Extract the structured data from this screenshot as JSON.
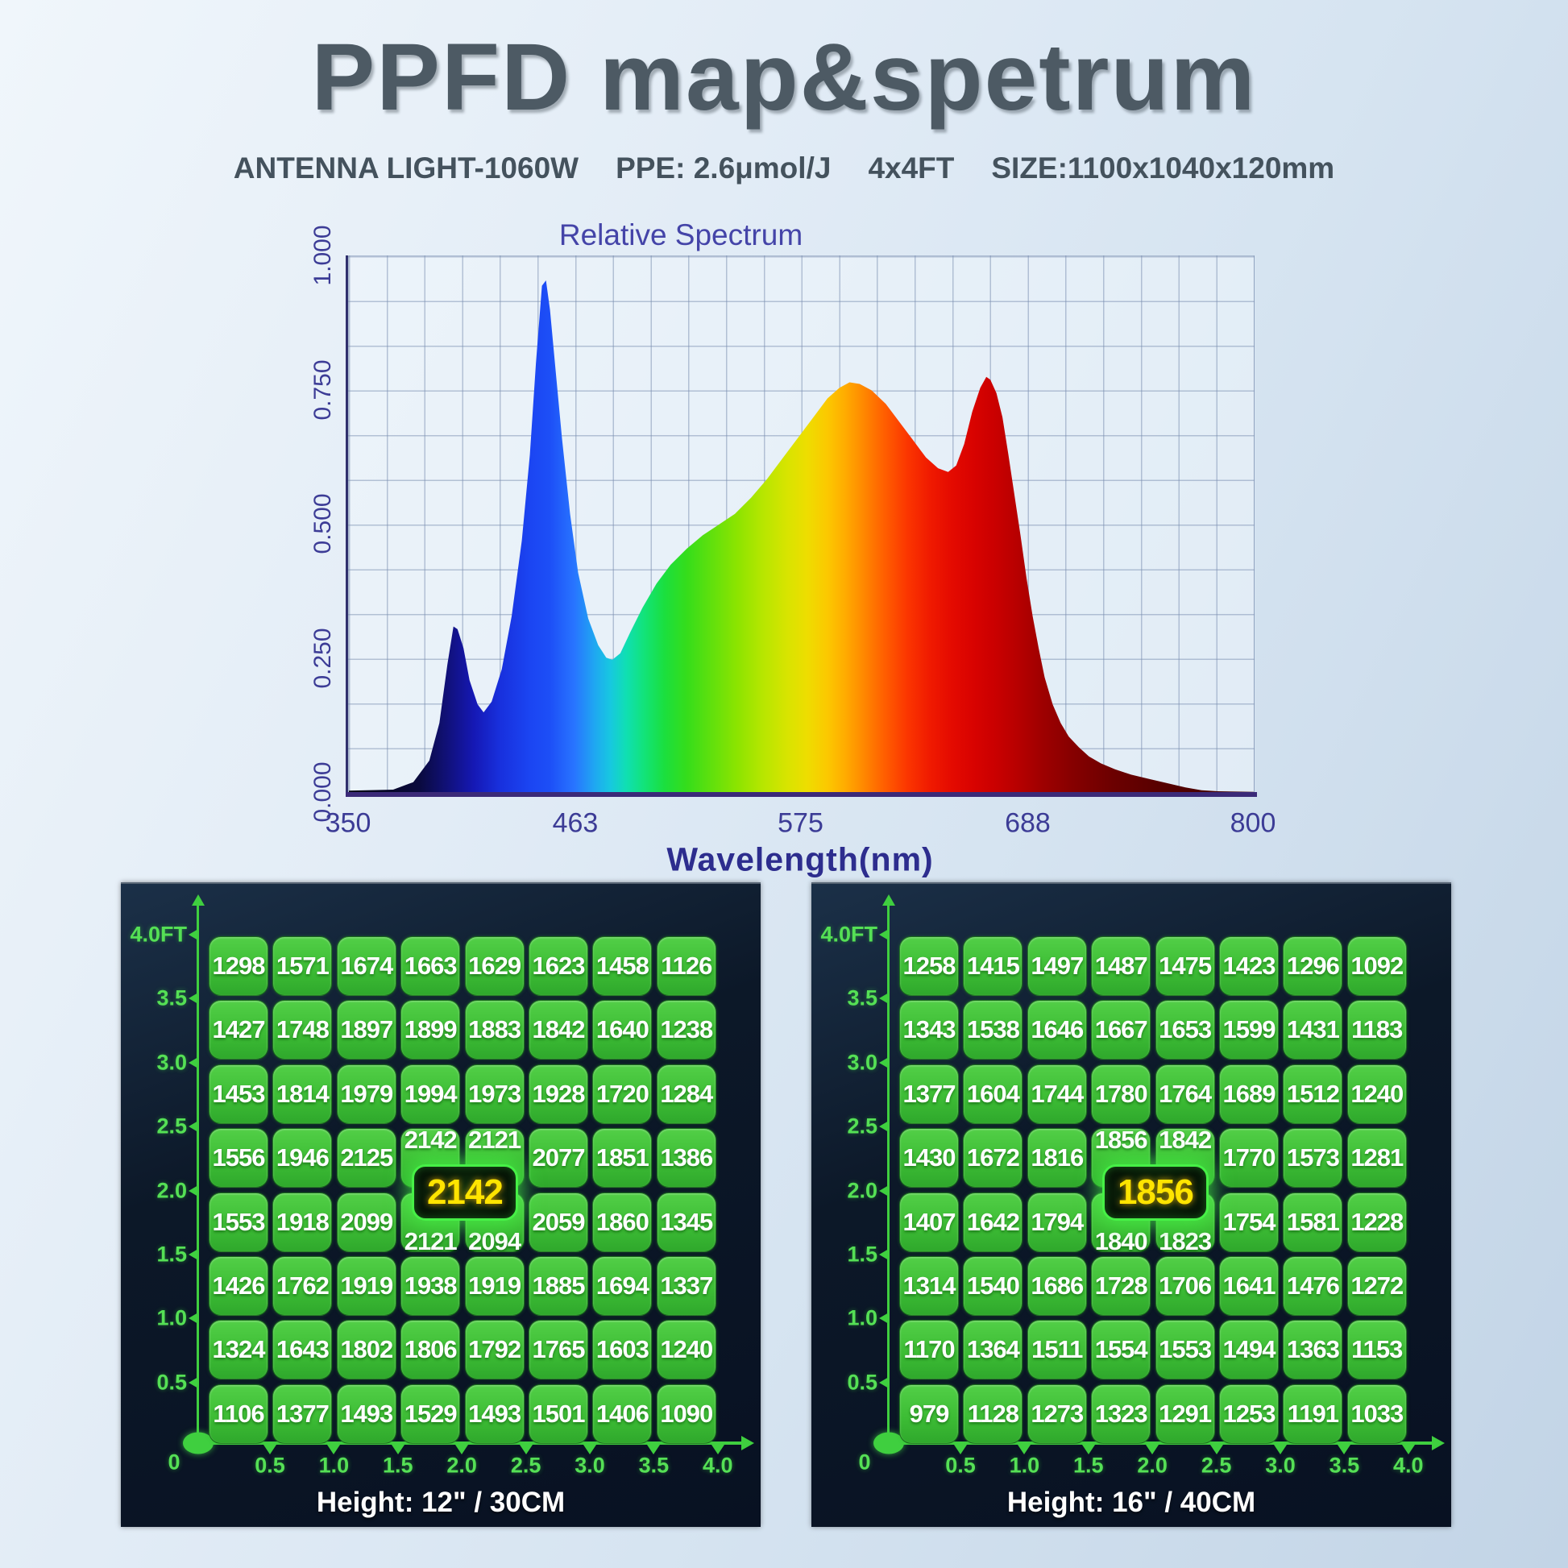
{
  "header": {
    "title": "PPFD map&spetrum",
    "subtitle_parts": [
      "ANTENNA LIGHT-1060W",
      "PPE: 2.6μmol/J",
      "4x4FT",
      "SIZE:1100x1040x120mm"
    ]
  },
  "chart_data": {
    "type": "area",
    "title": "Relative Spectrum",
    "xlabel": "Wavelength(nm)",
    "ylabel": "",
    "xlim": [
      350,
      800
    ],
    "ylim": [
      0,
      1
    ],
    "x_ticks": [
      "350",
      "463",
      "575",
      "688",
      "800"
    ],
    "x_tick_values": [
      350,
      463,
      575,
      688,
      800
    ],
    "y_ticks": [
      "1.000",
      "0.750",
      "0.500",
      "0.250",
      "0.000"
    ],
    "y_tick_values": [
      1.0,
      0.75,
      0.5,
      0.25,
      0.0
    ],
    "grid": "on",
    "points": [
      [
        350,
        0.004
      ],
      [
        372,
        0.006
      ],
      [
        382,
        0.02
      ],
      [
        390,
        0.06
      ],
      [
        395,
        0.13
      ],
      [
        399,
        0.24
      ],
      [
        402,
        0.31
      ],
      [
        404,
        0.305
      ],
      [
        407,
        0.27
      ],
      [
        410,
        0.21
      ],
      [
        414,
        0.165
      ],
      [
        417,
        0.15
      ],
      [
        421,
        0.17
      ],
      [
        426,
        0.23
      ],
      [
        431,
        0.33
      ],
      [
        436,
        0.47
      ],
      [
        440,
        0.63
      ],
      [
        443,
        0.8
      ],
      [
        446,
        0.945
      ],
      [
        448,
        0.955
      ],
      [
        450,
        0.9
      ],
      [
        453,
        0.78
      ],
      [
        456,
        0.66
      ],
      [
        460,
        0.52
      ],
      [
        464,
        0.41
      ],
      [
        469,
        0.325
      ],
      [
        474,
        0.275
      ],
      [
        478,
        0.252
      ],
      [
        481,
        0.248
      ],
      [
        485,
        0.26
      ],
      [
        490,
        0.3
      ],
      [
        496,
        0.345
      ],
      [
        503,
        0.39
      ],
      [
        510,
        0.425
      ],
      [
        518,
        0.455
      ],
      [
        526,
        0.48
      ],
      [
        534,
        0.5
      ],
      [
        542,
        0.52
      ],
      [
        550,
        0.55
      ],
      [
        558,
        0.585
      ],
      [
        566,
        0.625
      ],
      [
        574,
        0.665
      ],
      [
        582,
        0.705
      ],
      [
        588,
        0.735
      ],
      [
        594,
        0.755
      ],
      [
        599,
        0.765
      ],
      [
        604,
        0.762
      ],
      [
        610,
        0.75
      ],
      [
        617,
        0.725
      ],
      [
        624,
        0.69
      ],
      [
        631,
        0.655
      ],
      [
        637,
        0.625
      ],
      [
        643,
        0.605
      ],
      [
        648,
        0.598
      ],
      [
        652,
        0.61
      ],
      [
        656,
        0.65
      ],
      [
        660,
        0.71
      ],
      [
        664,
        0.755
      ],
      [
        667,
        0.775
      ],
      [
        669,
        0.77
      ],
      [
        672,
        0.745
      ],
      [
        675,
        0.7
      ],
      [
        678,
        0.63
      ],
      [
        681,
        0.555
      ],
      [
        684,
        0.48
      ],
      [
        687,
        0.4
      ],
      [
        690,
        0.33
      ],
      [
        693,
        0.27
      ],
      [
        696,
        0.215
      ],
      [
        700,
        0.165
      ],
      [
        704,
        0.13
      ],
      [
        708,
        0.105
      ],
      [
        713,
        0.085
      ],
      [
        718,
        0.068
      ],
      [
        724,
        0.055
      ],
      [
        731,
        0.044
      ],
      [
        739,
        0.034
      ],
      [
        748,
        0.026
      ],
      [
        757,
        0.018
      ],
      [
        766,
        0.01
      ],
      [
        774,
        0.005
      ],
      [
        782,
        0.003
      ],
      [
        800,
        0.002
      ]
    ],
    "gradient_stops": [
      [
        350,
        "#050510"
      ],
      [
        385,
        "#0a0a3e"
      ],
      [
        400,
        "#11117e"
      ],
      [
        412,
        "#1518b4"
      ],
      [
        425,
        "#1830dd"
      ],
      [
        440,
        "#1b45f2"
      ],
      [
        450,
        "#1d4ff7"
      ],
      [
        462,
        "#2874ff"
      ],
      [
        472,
        "#1fa6f2"
      ],
      [
        480,
        "#17c8e0"
      ],
      [
        488,
        "#10dfb2"
      ],
      [
        497,
        "#12e378"
      ],
      [
        507,
        "#1bdf3e"
      ],
      [
        518,
        "#35dd1b"
      ],
      [
        530,
        "#5fe00d"
      ],
      [
        543,
        "#8ce400"
      ],
      [
        556,
        "#b7e600"
      ],
      [
        568,
        "#d8e400"
      ],
      [
        578,
        "#eedd00"
      ],
      [
        588,
        "#fcc800"
      ],
      [
        597,
        "#ffab00"
      ],
      [
        607,
        "#ff8400"
      ],
      [
        617,
        "#ff5c00"
      ],
      [
        628,
        "#fb3500"
      ],
      [
        639,
        "#f01a00"
      ],
      [
        650,
        "#e40a00"
      ],
      [
        660,
        "#d90300"
      ],
      [
        670,
        "#cc0000"
      ],
      [
        682,
        "#b80000"
      ],
      [
        695,
        "#9e0000"
      ],
      [
        710,
        "#860000"
      ],
      [
        730,
        "#6c0000"
      ],
      [
        755,
        "#560000"
      ],
      [
        780,
        "#460000"
      ],
      [
        800,
        "#3c0000"
      ]
    ]
  },
  "ppfd_maps": [
    {
      "caption": "Height: 12\" / 30CM",
      "center_value": "2142",
      "y_axis_labels": [
        "4.0FT",
        "3.5",
        "3.0",
        "2.5",
        "2.0",
        "1.5",
        "1.0",
        "0.5"
      ],
      "origin_label": "0",
      "x_axis_labels": [
        "0.5",
        "1.0",
        "1.5",
        "2.0",
        "2.5",
        "3.0",
        "3.5",
        "4.0"
      ],
      "rows": [
        [
          1298,
          1571,
          1674,
          1663,
          1629,
          1623,
          1458,
          1126
        ],
        [
          1427,
          1748,
          1897,
          1899,
          1883,
          1842,
          1640,
          1238
        ],
        [
          1453,
          1814,
          1979,
          1994,
          1973,
          1928,
          1720,
          1284
        ],
        [
          1556,
          1946,
          2125,
          2142,
          2121,
          2077,
          1851,
          1386
        ],
        [
          1553,
          1918,
          2099,
          2121,
          2094,
          2059,
          1860,
          1345
        ],
        [
          1426,
          1762,
          1919,
          1938,
          1919,
          1885,
          1694,
          1337
        ],
        [
          1324,
          1643,
          1802,
          1806,
          1792,
          1765,
          1603,
          1240
        ],
        [
          1106,
          1377,
          1493,
          1529,
          1493,
          1501,
          1406,
          1090
        ]
      ],
      "shifted_up": [
        [
          3,
          3
        ],
        [
          3,
          4
        ]
      ],
      "shifted_down": [
        [
          4,
          3
        ],
        [
          4,
          4
        ]
      ]
    },
    {
      "caption": "Height: 16\" / 40CM",
      "center_value": "1856",
      "y_axis_labels": [
        "4.0FT",
        "3.5",
        "3.0",
        "2.5",
        "2.0",
        "1.5",
        "1.0",
        "0.5"
      ],
      "origin_label": "0",
      "x_axis_labels": [
        "0.5",
        "1.0",
        "1.5",
        "2.0",
        "2.5",
        "3.0",
        "3.5",
        "4.0"
      ],
      "rows": [
        [
          1258,
          1415,
          1497,
          1487,
          1475,
          1423,
          1296,
          1092
        ],
        [
          1343,
          1538,
          1646,
          1667,
          1653,
          1599,
          1431,
          1183
        ],
        [
          1377,
          1604,
          1744,
          1780,
          1764,
          1689,
          1512,
          1240
        ],
        [
          1430,
          1672,
          1816,
          1856,
          1842,
          1770,
          1573,
          1281
        ],
        [
          1407,
          1642,
          1794,
          1840,
          1823,
          1754,
          1581,
          1228
        ],
        [
          1314,
          1540,
          1686,
          1728,
          1706,
          1641,
          1476,
          1272
        ],
        [
          1170,
          1364,
          1511,
          1554,
          1553,
          1494,
          1363,
          1153
        ],
        [
          979,
          1128,
          1273,
          1323,
          1291,
          1253,
          1191,
          1033
        ]
      ],
      "shifted_up": [
        [
          3,
          3
        ],
        [
          3,
          4
        ]
      ],
      "shifted_down": [
        [
          4,
          3
        ],
        [
          4,
          4
        ]
      ]
    }
  ],
  "colors": {
    "page_bg_top": "#f0f6fb",
    "page_bg_bottom": "#c2d4e6",
    "title_text": "#4d5a64",
    "chart_text": "#3c3c96",
    "panel_bg": "#0c1828",
    "axis_green": "#3fcf3f",
    "cell_green": "#3dbd35",
    "cell_text": "#ffffff",
    "badge_text": "#ffe400",
    "badge_glow": "#46f046",
    "caption_text": "#ffffff"
  }
}
